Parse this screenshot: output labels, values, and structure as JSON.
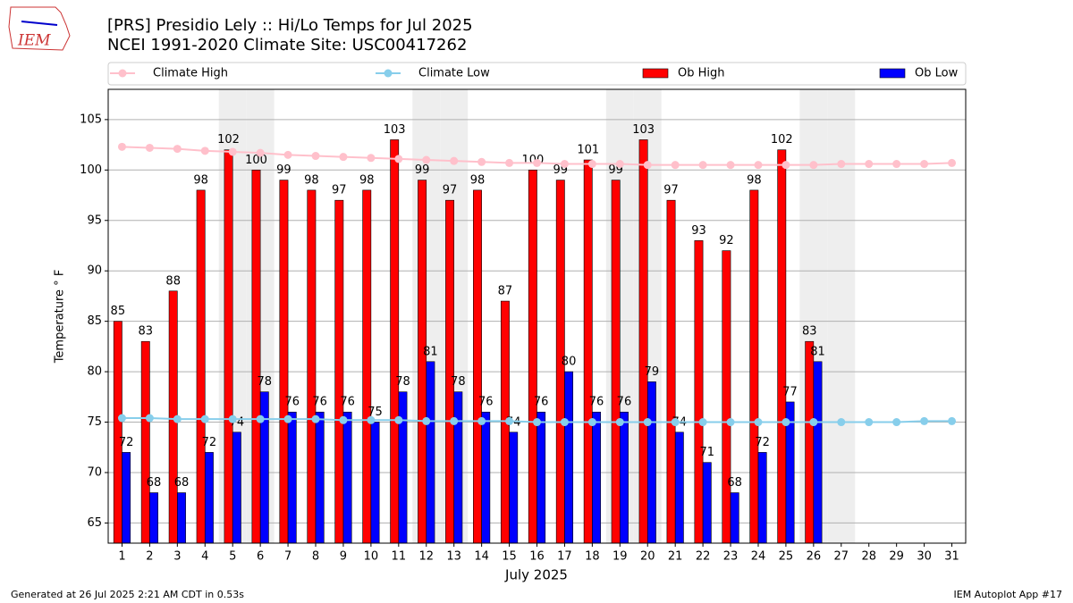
{
  "chart_data": {
    "type": "bar_line",
    "title": "[PRS] Presidio Lely :: Hi/Lo Temps for Jul 2025",
    "subtitle": "NCEI 1991-2020 Climate Site: USC00417262",
    "xlabel": "July 2025",
    "ylabel": "Temperature ° F",
    "footer_left": "Generated at 26 Jul 2025 2:21 AM CDT in 0.53s",
    "footer_right": "IEM Autoplot App #17",
    "logo_text": "IEM",
    "x": [
      1,
      2,
      3,
      4,
      5,
      6,
      7,
      8,
      9,
      10,
      11,
      12,
      13,
      14,
      15,
      16,
      17,
      18,
      19,
      20,
      21,
      22,
      23,
      24,
      25,
      26,
      27,
      28,
      29,
      30,
      31
    ],
    "xlim": [
      0.5,
      31.5
    ],
    "xticks": [
      1,
      2,
      3,
      4,
      5,
      6,
      7,
      8,
      9,
      10,
      11,
      12,
      13,
      14,
      15,
      16,
      17,
      18,
      19,
      20,
      21,
      22,
      23,
      24,
      25,
      26,
      27,
      28,
      29,
      30,
      31
    ],
    "ylim": [
      63,
      108
    ],
    "yticks": [
      65,
      70,
      75,
      80,
      85,
      90,
      95,
      100,
      105
    ],
    "grid": true,
    "weekend_days": [
      5,
      6,
      12,
      13,
      19,
      20,
      26,
      27
    ],
    "series": [
      {
        "name": "Climate High",
        "kind": "line",
        "color": "#ffc0cb",
        "values": [
          102.3,
          102.2,
          102.1,
          101.9,
          101.8,
          101.7,
          101.5,
          101.4,
          101.3,
          101.2,
          101.1,
          101.0,
          100.9,
          100.8,
          100.7,
          100.7,
          100.6,
          100.6,
          100.6,
          100.5,
          100.5,
          100.5,
          100.5,
          100.5,
          100.5,
          100.5,
          100.6,
          100.6,
          100.6,
          100.6,
          100.7
        ]
      },
      {
        "name": "Climate Low",
        "kind": "line",
        "color": "#87ceeb",
        "values": [
          75.4,
          75.4,
          75.3,
          75.3,
          75.3,
          75.3,
          75.3,
          75.3,
          75.2,
          75.2,
          75.2,
          75.1,
          75.1,
          75.1,
          75.1,
          75.0,
          75.0,
          75.0,
          75.0,
          75.0,
          75.0,
          75.0,
          75.0,
          75.0,
          75.0,
          75.0,
          75.0,
          75.0,
          75.0,
          75.1,
          75.1
        ]
      },
      {
        "name": "Ob High",
        "kind": "bar",
        "color": "#ff0000",
        "values": [
          85,
          83,
          88,
          98,
          102,
          100,
          99,
          98,
          97,
          98,
          103,
          99,
          97,
          98,
          87,
          100,
          99,
          101,
          99,
          103,
          97,
          93,
          92,
          98,
          102,
          83,
          null,
          null,
          null,
          null,
          null
        ]
      },
      {
        "name": "Ob Low",
        "kind": "bar",
        "color": "#0000ff",
        "values": [
          72,
          68,
          68,
          72,
          74,
          78,
          76,
          76,
          76,
          75,
          78,
          81,
          78,
          76,
          74,
          76,
          80,
          76,
          76,
          79,
          74,
          71,
          68,
          72,
          77,
          81,
          null,
          null,
          null,
          null,
          null
        ]
      }
    ]
  }
}
